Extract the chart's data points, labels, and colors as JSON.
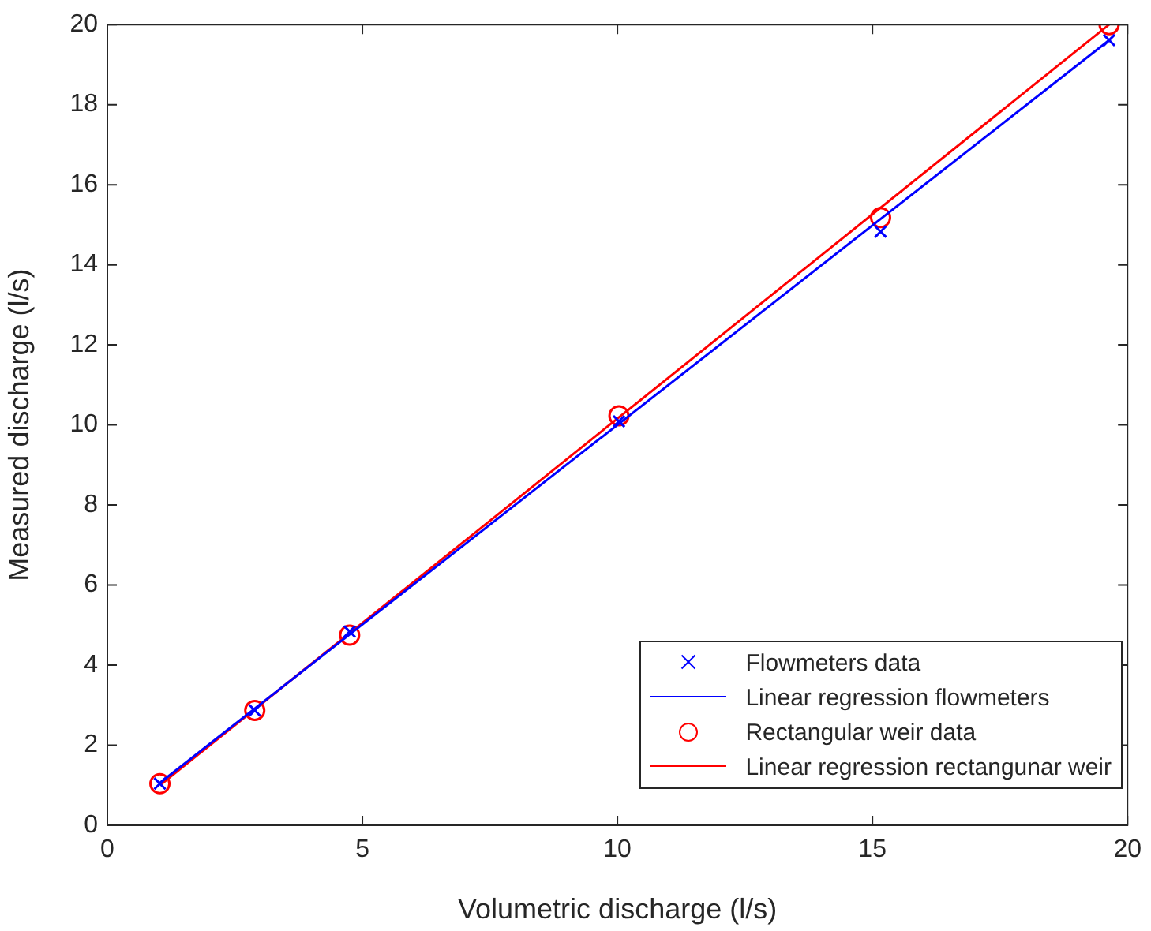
{
  "chart_data": {
    "type": "scatter",
    "xlabel": "Volumetric discharge (l/s)",
    "ylabel": "Measured discharge (l/s)",
    "xlim": [
      0,
      20
    ],
    "xticks": [
      0,
      5,
      10,
      15,
      20
    ],
    "ylim": [
      0,
      20
    ],
    "yticks": [
      0,
      2,
      4,
      6,
      8,
      10,
      12,
      14,
      16,
      18,
      20
    ],
    "grid": false,
    "legend": "bottom right",
    "series": [
      {
        "name": "Flowmeters data",
        "type": "scatter",
        "marker": "cross",
        "color": "#0000ff",
        "x": [
          1.03,
          2.89,
          4.75,
          10.03,
          15.16,
          19.64
        ],
        "values": [
          1.04,
          2.87,
          4.84,
          10.09,
          14.83,
          19.61
        ]
      },
      {
        "name": "Linear regression flowmeters",
        "type": "line",
        "marker": "none",
        "color": "#0000ff",
        "x": [
          1.03,
          19.64
        ],
        "values": [
          1.06,
          19.61
        ]
      },
      {
        "name": "Rectangular weir data",
        "type": "scatter",
        "marker": "circle",
        "color": "#ff0000",
        "x": [
          1.03,
          2.89,
          4.75,
          10.03,
          15.16,
          19.64
        ],
        "values": [
          1.04,
          2.87,
          4.75,
          10.23,
          15.18,
          20.0
        ]
      },
      {
        "name": "Linear regression rectangunar weir",
        "type": "line",
        "marker": "none",
        "color": "#ff0000",
        "x": [
          1.03,
          19.64
        ],
        "values": [
          1.0,
          20.0
        ]
      }
    ]
  }
}
